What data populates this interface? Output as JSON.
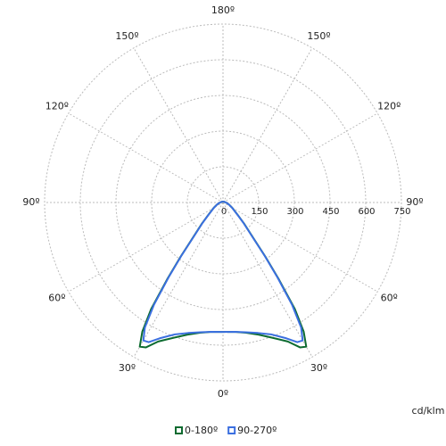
{
  "chart_data": {
    "type": "polar",
    "unit_label": "cd/klm",
    "angles": [
      0,
      5,
      10,
      15,
      20,
      25,
      28,
      30,
      32,
      34,
      36,
      38,
      40,
      45,
      50,
      60,
      70,
      80,
      90,
      120,
      150,
      180
    ],
    "series": [
      {
        "name": "0-180º",
        "color": "#0d6b30",
        "values": [
          544,
          546,
          556,
          575,
          605,
          645,
          690,
          700,
          640,
          540,
          400,
          290,
          210,
          125,
          80,
          45,
          28,
          18,
          12,
          6,
          4,
          3
        ]
      },
      {
        "name": "90-270º",
        "color": "#3b6fe0",
        "values": [
          544,
          546,
          554,
          568,
          590,
          630,
          665,
          670,
          620,
          520,
          390,
          285,
          205,
          122,
          78,
          44,
          27,
          18,
          12,
          6,
          4,
          3
        ]
      }
    ],
    "rlim": [
      0,
      750
    ],
    "rticks": [
      0,
      150,
      300,
      450,
      600,
      750
    ],
    "angle_ticks": [
      {
        "value": 0,
        "label": "0º"
      },
      {
        "value": 30,
        "label": "30º"
      },
      {
        "value": 60,
        "label": "60º"
      },
      {
        "value": 90,
        "label": "90º"
      },
      {
        "value": 120,
        "label": "120º"
      },
      {
        "value": 150,
        "label": "150º"
      },
      {
        "value": 180,
        "label": "180º"
      }
    ],
    "grid": true,
    "legend": "bottom"
  }
}
